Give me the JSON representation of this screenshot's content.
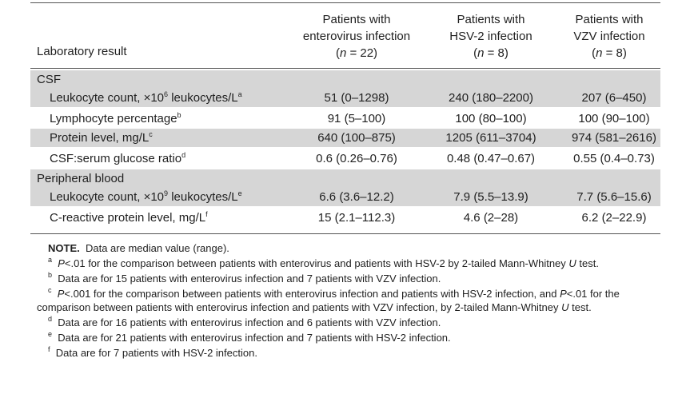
{
  "header": {
    "row_label": "Laboratory result",
    "columns": [
      {
        "line1": "Patients with",
        "line2": "enterovirus infection",
        "n_prefix": "(",
        "n_var": "n",
        "n_eq": " = 22)"
      },
      {
        "line1": "Patients with",
        "line2": "HSV-2 infection",
        "n_prefix": "(",
        "n_var": "n",
        "n_eq": " = 8)"
      },
      {
        "line1": "Patients with",
        "line2": "VZV infection",
        "n_prefix": "(",
        "n_var": "n",
        "n_eq": " = 8)"
      }
    ]
  },
  "sections": [
    {
      "title": "CSF",
      "rows": [
        {
          "label": "Leukocyte count, ×10",
          "exp": "6",
          "label_tail": " leukocytes/L",
          "sup": "a",
          "values": [
            "51 (0–1298)",
            "240 (180–2200)",
            "207 (6–450)"
          ],
          "shaded": true
        },
        {
          "label": "Lymphocyte percentage",
          "exp": "",
          "label_tail": "",
          "sup": "b",
          "values": [
            "91 (5–100)",
            "100 (80–100)",
            "100 (90–100)"
          ],
          "shaded": false
        },
        {
          "label": "Protein level, mg/L",
          "exp": "",
          "label_tail": "",
          "sup": "c",
          "values": [
            "640 (100–875)",
            "1205 (611–3704)",
            "974 (581–2616)"
          ],
          "shaded": true
        },
        {
          "label": "CSF:serum glucose ratio",
          "exp": "",
          "label_tail": "",
          "sup": "d",
          "values": [
            "0.6 (0.26–0.76)",
            "0.48 (0.47–0.67)",
            "0.55 (0.4–0.73)"
          ],
          "shaded": false
        }
      ]
    },
    {
      "title": "Peripheral blood",
      "rows": [
        {
          "label": "Leukocyte count, ×10",
          "exp": "9",
          "label_tail": " leukocytes/L",
          "sup": "e",
          "values": [
            "6.6 (3.6–12.2)",
            "7.9 (5.5–13.9)",
            "7.7 (5.6–15.6)"
          ],
          "shaded": true
        },
        {
          "label": "C-reactive protein level, mg/L",
          "exp": "",
          "label_tail": "",
          "sup": "f",
          "values": [
            "15 (2.1–112.3)",
            "4.6 (2–28)",
            "6.2 (2–22.9)"
          ],
          "shaded": false
        }
      ]
    }
  ],
  "notes": {
    "note_label": "NOTE.",
    "note_text": "Data are median value (range).",
    "footnotes": [
      {
        "mark": "a",
        "pre": "",
        "p": "P",
        "text": "<.01 for the comparison between patients with enterovirus and patients with HSV-2 by 2-tailed Mann-Whitney ",
        "u": "U",
        "post": " test."
      },
      {
        "mark": "b",
        "pre": "",
        "p": "",
        "text": "Data are for 15 patients with enterovirus infection and 7 patients with VZV infection.",
        "u": "",
        "post": ""
      },
      {
        "mark": "c",
        "pre": "",
        "p": "P",
        "text": "<.001 for the comparison between patients with enterovirus infection and patients with HSV-2 infection, and ",
        "p2": "P",
        "text2": "<.01 for the comparison between patients with enterovirus infection and patients with VZV infection, by 2-tailed Mann-Whitney ",
        "u": "U",
        "post": " test."
      },
      {
        "mark": "d",
        "pre": "",
        "p": "",
        "text": "Data are for 16 patients with enterovirus infection and 6 patients with VZV infection.",
        "u": "",
        "post": ""
      },
      {
        "mark": "e",
        "pre": "",
        "p": "",
        "text": "Data are for 21 patients with enterovirus infection and 7 patients with HSV-2 infection.",
        "u": "",
        "post": ""
      },
      {
        "mark": "f",
        "pre": "",
        "p": "",
        "text": "Data are for 7 patients with HSV-2 infection.",
        "u": "",
        "post": ""
      }
    ]
  }
}
